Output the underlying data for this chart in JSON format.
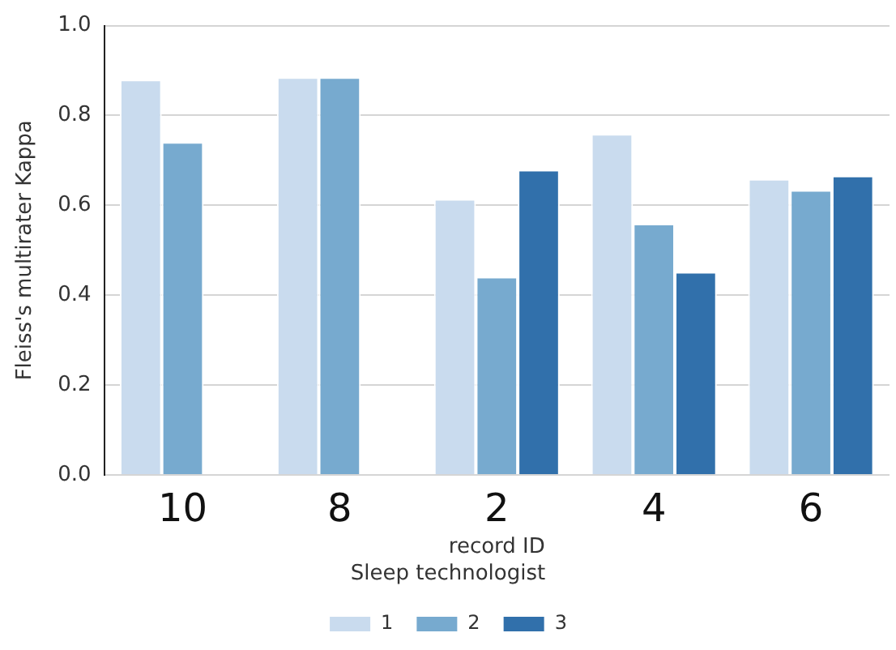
{
  "chart_data": {
    "type": "bar",
    "xlabel": "record ID",
    "ylabel": "Fleiss's multirater Kappa",
    "legend_title": "Sleep technologist",
    "categories": [
      "10",
      "8",
      "2",
      "4",
      "6"
    ],
    "series": [
      {
        "name": "1",
        "color": "#c9dbee",
        "values": [
          0.88,
          0.885,
          0.614,
          0.759,
          0.659
        ]
      },
      {
        "name": "2",
        "color": "#77aacf",
        "values": [
          0.741,
          0.885,
          0.441,
          0.559,
          0.634
        ]
      },
      {
        "name": "3",
        "color": "#3170ab",
        "values": [
          null,
          null,
          0.679,
          0.452,
          0.666
        ]
      }
    ],
    "ylim": [
      0,
      1
    ],
    "yticks": [
      {
        "value": 0,
        "label": "0.0"
      },
      {
        "value": 0.2,
        "label": "0.2"
      },
      {
        "value": 0.4,
        "label": "0.4"
      },
      {
        "value": 0.6,
        "label": "0.6"
      },
      {
        "value": 0.8,
        "label": "0.8"
      },
      {
        "value": 1,
        "label": "1.0"
      }
    ],
    "grid": "y",
    "legend": "bottom"
  }
}
